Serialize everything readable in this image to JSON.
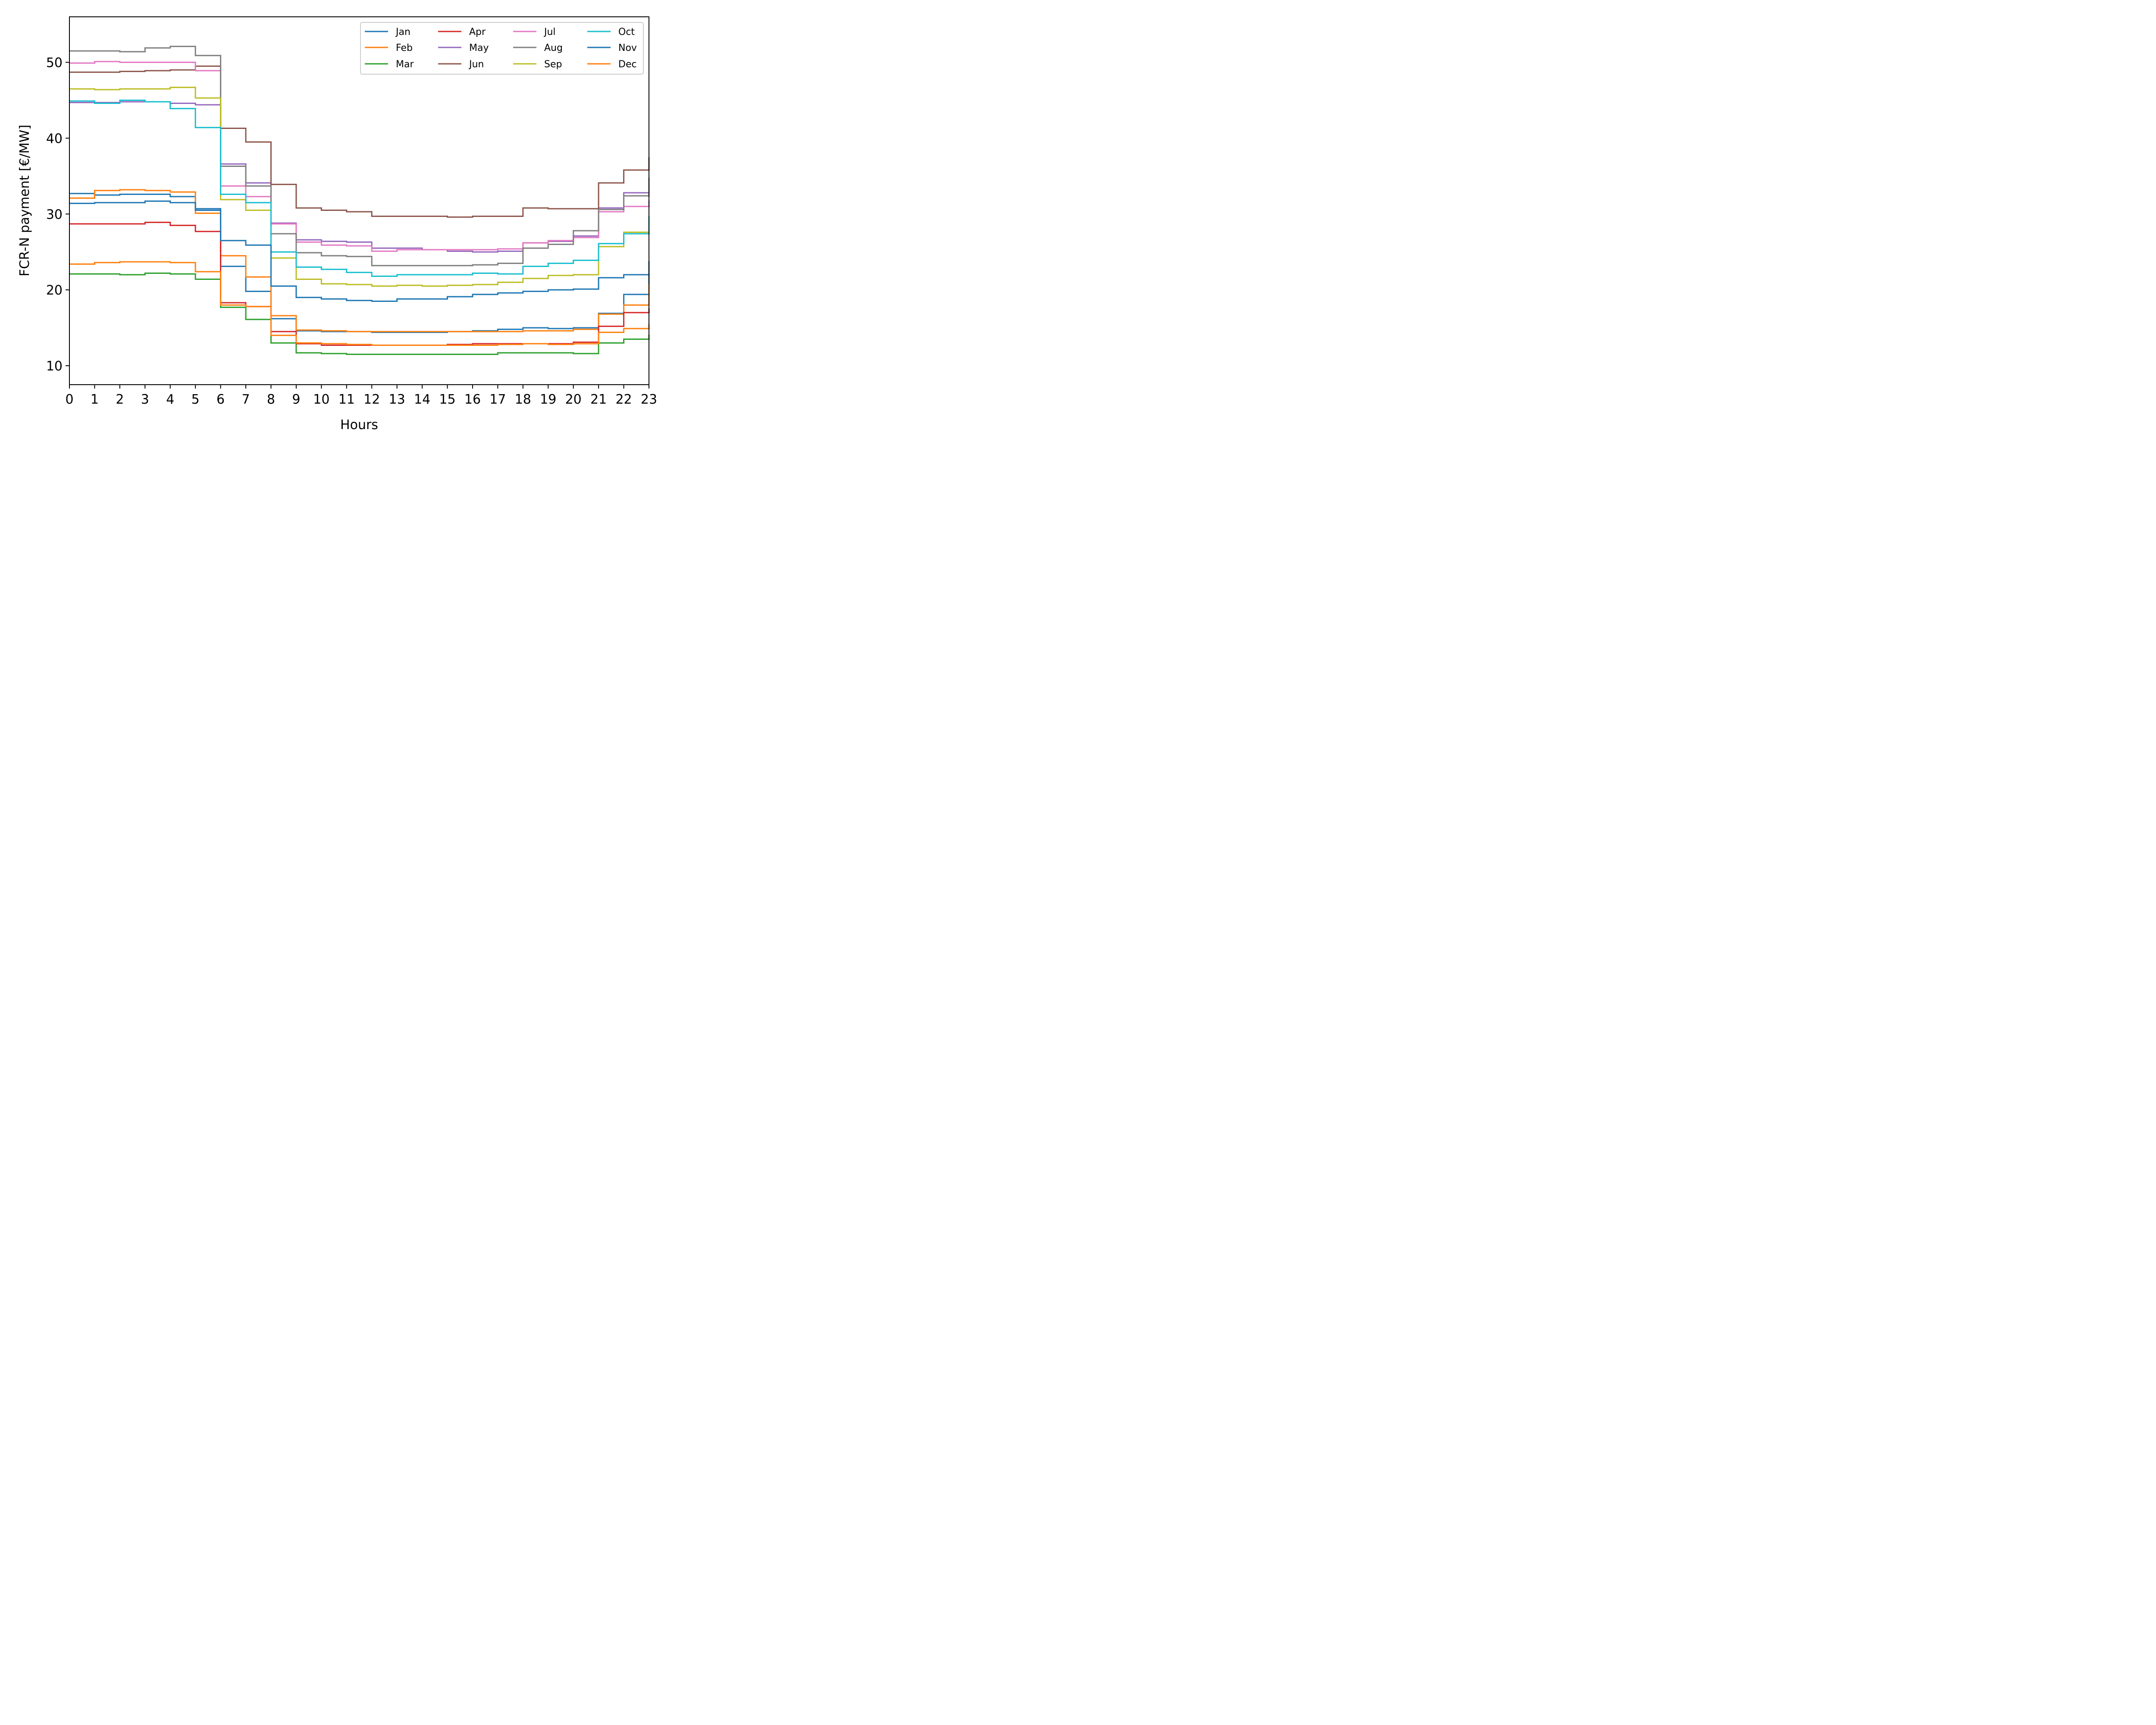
{
  "chart_data": {
    "type": "line",
    "step": "post",
    "xlabel": "Hours",
    "ylabel": "FCR-N payment [€/MW]",
    "xlim": [
      0,
      23
    ],
    "ylim": [
      7.5,
      56
    ],
    "xticks": [
      0,
      1,
      2,
      3,
      4,
      5,
      6,
      7,
      8,
      9,
      10,
      11,
      12,
      13,
      14,
      15,
      16,
      17,
      18,
      19,
      20,
      21,
      22,
      23
    ],
    "yticks": [
      10,
      20,
      30,
      40,
      50
    ],
    "grid": false,
    "legend_position": "top-right",
    "x": [
      0,
      1,
      2,
      3,
      4,
      5,
      6,
      7,
      8,
      9,
      10,
      11,
      12,
      13,
      14,
      15,
      16,
      17,
      18,
      19,
      20,
      21,
      22,
      23
    ],
    "series": [
      {
        "name": "Jan",
        "color": "#1f77b4",
        "values": [
          32.7,
          32.5,
          32.6,
          32.6,
          32.3,
          30.7,
          23.1,
          19.8,
          16.2,
          14.6,
          14.5,
          14.5,
          14.4,
          14.4,
          14.4,
          14.5,
          14.6,
          14.8,
          15.0,
          14.9,
          15.0,
          16.9,
          19.4,
          23.8
        ]
      },
      {
        "name": "Feb",
        "color": "#ff7f0e",
        "values": [
          32.1,
          33.1,
          33.2,
          33.1,
          32.9,
          30.1,
          24.5,
          21.7,
          16.6,
          14.7,
          14.6,
          14.5,
          14.5,
          14.5,
          14.5,
          14.5,
          14.5,
          14.5,
          14.6,
          14.6,
          14.8,
          16.8,
          18.0,
          20.8
        ]
      },
      {
        "name": "Mar",
        "color": "#2ca02c",
        "values": [
          22.1,
          22.1,
          22.0,
          22.2,
          22.1,
          21.4,
          17.7,
          16.1,
          13.0,
          11.7,
          11.6,
          11.5,
          11.5,
          11.5,
          11.5,
          11.5,
          11.5,
          11.7,
          11.7,
          11.7,
          11.6,
          13.0,
          13.5,
          14.1
        ]
      },
      {
        "name": "Apr",
        "color": "#d62728",
        "values": [
          28.7,
          28.7,
          28.7,
          28.9,
          28.5,
          27.7,
          18.3,
          17.8,
          14.5,
          12.9,
          12.7,
          12.7,
          12.7,
          12.7,
          12.7,
          12.8,
          12.9,
          12.9,
          12.9,
          12.9,
          13.1,
          15.2,
          17.0,
          17.6
        ]
      },
      {
        "name": "May",
        "color": "#9467bd",
        "values": [
          44.7,
          44.7,
          44.8,
          44.8,
          44.6,
          44.4,
          36.6,
          34.1,
          28.8,
          26.6,
          26.4,
          26.3,
          25.5,
          25.5,
          25.3,
          25.1,
          25.0,
          25.1,
          26.2,
          26.4,
          27.1,
          30.8,
          32.8,
          33.6
        ]
      },
      {
        "name": "Jun",
        "color": "#8c564b",
        "values": [
          48.7,
          48.7,
          48.8,
          48.9,
          49.0,
          49.5,
          41.3,
          39.5,
          33.9,
          30.8,
          30.5,
          30.3,
          29.7,
          29.7,
          29.7,
          29.6,
          29.7,
          29.7,
          30.8,
          30.7,
          30.7,
          34.1,
          35.8,
          37.5
        ]
      },
      {
        "name": "Jul",
        "color": "#e377c2",
        "values": [
          49.9,
          50.1,
          50.0,
          50.0,
          50.0,
          48.9,
          33.7,
          32.3,
          28.7,
          26.3,
          25.9,
          25.8,
          25.1,
          25.3,
          25.3,
          25.3,
          25.3,
          25.4,
          26.2,
          26.5,
          26.9,
          30.3,
          31.0,
          31.8
        ]
      },
      {
        "name": "Aug",
        "color": "#7f7f7f",
        "values": [
          51.5,
          51.5,
          51.4,
          51.9,
          52.1,
          50.9,
          36.3,
          33.7,
          27.4,
          24.9,
          24.5,
          24.4,
          23.2,
          23.2,
          23.2,
          23.2,
          23.3,
          23.5,
          25.5,
          26.0,
          27.8,
          30.6,
          32.4,
          34.8
        ]
      },
      {
        "name": "Sep",
        "color": "#bcbd22",
        "values": [
          46.5,
          46.4,
          46.5,
          46.5,
          46.7,
          45.3,
          31.9,
          30.5,
          24.2,
          21.4,
          20.8,
          20.7,
          20.5,
          20.6,
          20.5,
          20.6,
          20.7,
          21.0,
          21.5,
          21.9,
          22.0,
          25.7,
          27.6,
          28.2
        ]
      },
      {
        "name": "Oct",
        "color": "#17becf",
        "values": [
          44.9,
          44.6,
          45.0,
          44.8,
          43.9,
          41.4,
          32.6,
          31.5,
          25.0,
          23.0,
          22.7,
          22.3,
          21.8,
          22.0,
          22.0,
          22.0,
          22.2,
          22.1,
          23.1,
          23.5,
          23.9,
          26.1,
          27.4,
          29.7
        ]
      },
      {
        "name": "Nov",
        "color": "#1f77b4",
        "values": [
          31.4,
          31.5,
          31.5,
          31.7,
          31.5,
          30.5,
          26.5,
          25.9,
          20.5,
          19.0,
          18.8,
          18.6,
          18.5,
          18.8,
          18.8,
          19.1,
          19.4,
          19.6,
          19.8,
          20.0,
          20.1,
          21.6,
          22.0,
          23.4
        ]
      },
      {
        "name": "Dec",
        "color": "#ff7f0e",
        "values": [
          23.4,
          23.6,
          23.7,
          23.7,
          23.6,
          22.4,
          18.0,
          17.8,
          14.0,
          13.0,
          12.9,
          12.8,
          12.7,
          12.7,
          12.7,
          12.7,
          12.7,
          12.8,
          12.9,
          12.8,
          12.9,
          14.4,
          14.9,
          15.5
        ]
      }
    ]
  }
}
